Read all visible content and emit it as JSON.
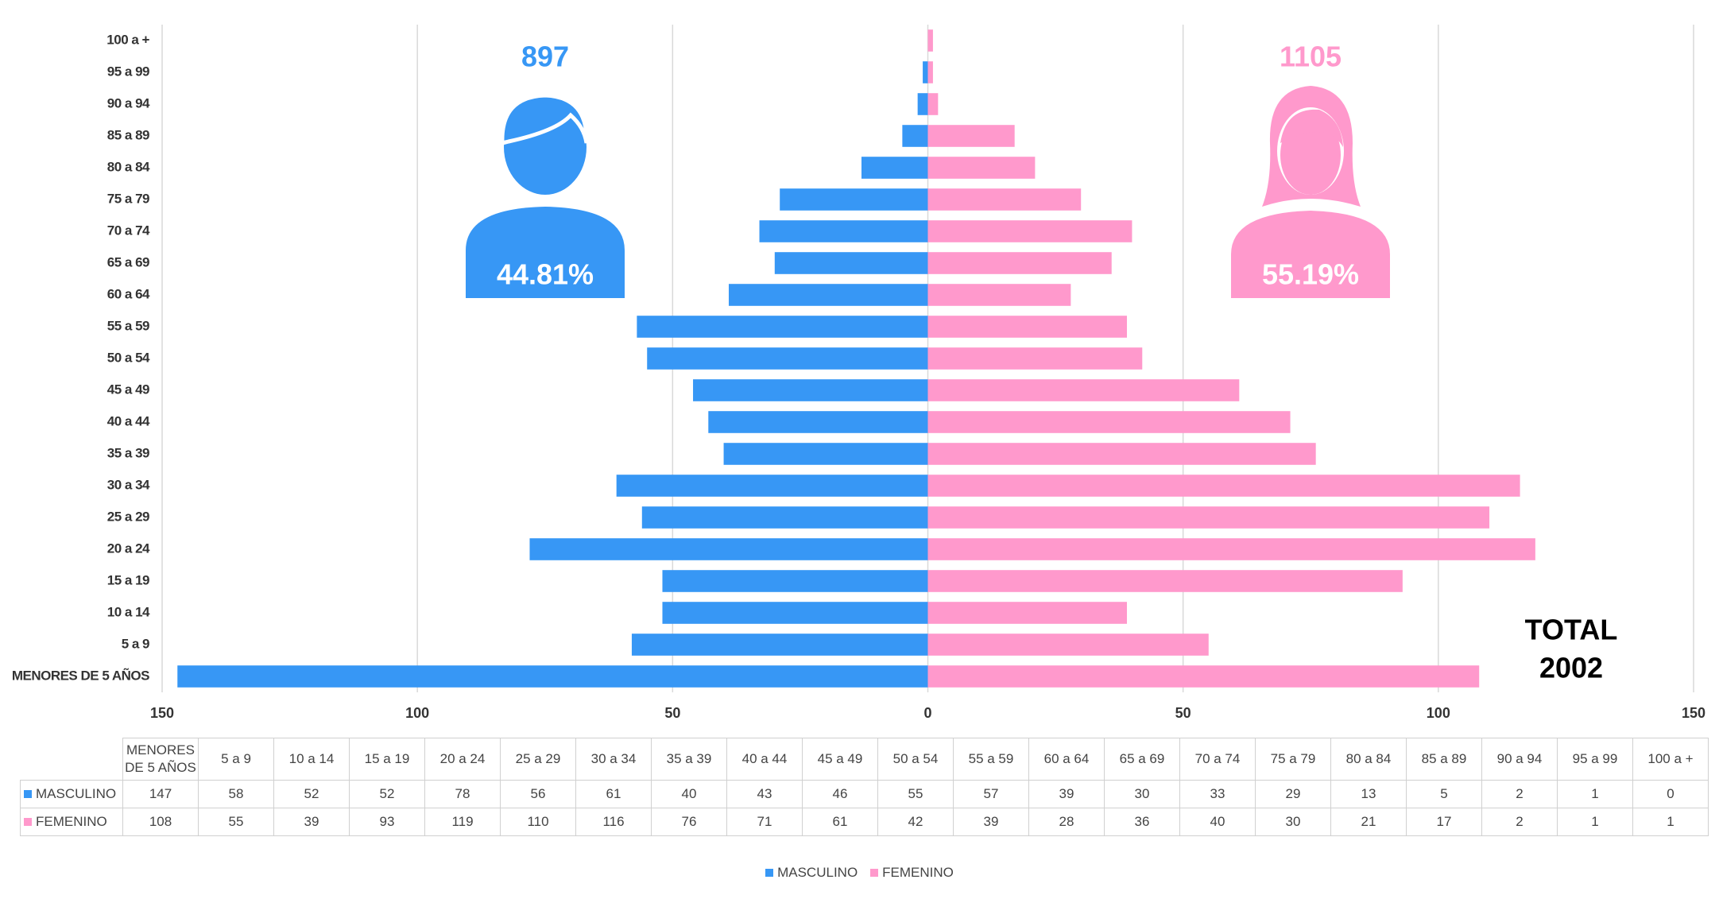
{
  "chart_data": {
    "type": "population-pyramid",
    "categories": [
      "MENORES DE 5 AÑOS",
      "5 a 9",
      "10 a 14",
      "15 a 19",
      "20 a 24",
      "25 a 29",
      "30 a 34",
      "35 a 39",
      "40 a 44",
      "45 a 49",
      "50 a 54",
      "55 a 59",
      "60 a 64",
      "65 a 69",
      "70 a 74",
      "75 a 79",
      "80 a 84",
      "85 a 89",
      "90 a 94",
      "95 a 99",
      "100 a +"
    ],
    "series": [
      {
        "name": "MASCULINO",
        "color": "#3797f5",
        "side": "left",
        "values": [
          147,
          58,
          52,
          52,
          78,
          56,
          61,
          40,
          43,
          46,
          55,
          57,
          39,
          30,
          33,
          29,
          13,
          5,
          2,
          1,
          0
        ]
      },
      {
        "name": "FEMENINO",
        "color": "#ff99cc",
        "side": "right",
        "values": [
          108,
          55,
          39,
          93,
          119,
          110,
          116,
          76,
          71,
          61,
          42,
          39,
          28,
          36,
          40,
          30,
          21,
          17,
          2,
          1,
          1
        ]
      }
    ],
    "xlim": [
      -150,
      150
    ],
    "xticks": [
      {
        "value": -150,
        "label": "150"
      },
      {
        "value": -100,
        "label": "100"
      },
      {
        "value": -50,
        "label": "50"
      },
      0,
      50,
      100,
      150
    ],
    "grid": true,
    "annotations": {
      "male_total": "897",
      "male_percent": "44.81%",
      "female_total": "1105",
      "female_percent": "55.19%",
      "total_label": "TOTAL",
      "total_value": "2002"
    }
  }
}
